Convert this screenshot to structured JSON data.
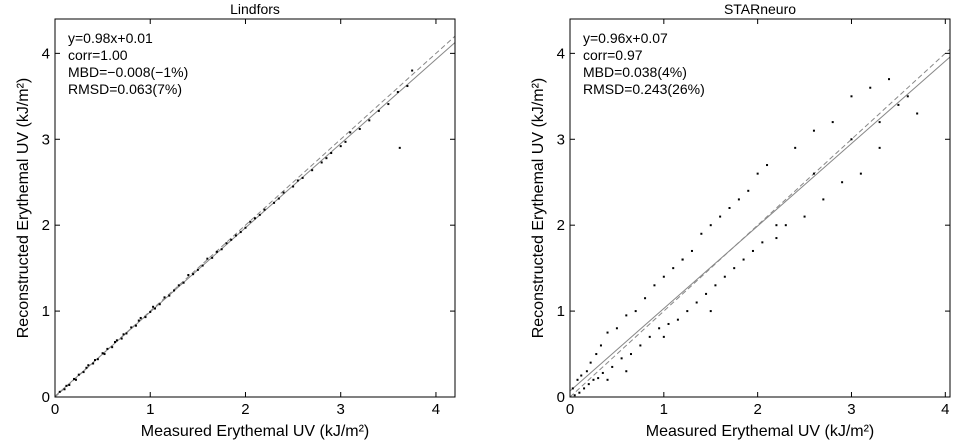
{
  "chart_data": [
    {
      "type": "scatter",
      "title": "Lindfors",
      "x_label": "Measured Erythemal UV (kJ/m²)",
      "y_label": "Reconstructed Erythemal UV (kJ/m²)",
      "annotations": [
        "y=0.98x+0.01",
        "corr=1.00",
        "MBD=−0.008(−1%)",
        "RMSD=0.063(7%)"
      ],
      "xlim": [
        0,
        4.2
      ],
      "ylim": [
        0,
        4.4
      ],
      "xticks": [
        0,
        1,
        2,
        3,
        4
      ],
      "yticks": [
        0,
        1,
        2,
        3,
        4
      ],
      "color": "#000000",
      "line_color": "#888888",
      "identity_line": true,
      "fit": {
        "slope": 0.98,
        "intercept": 0.01
      },
      "x": [
        0.05,
        0.1,
        0.12,
        0.15,
        0.2,
        0.22,
        0.25,
        0.3,
        0.33,
        0.35,
        0.4,
        0.42,
        0.45,
        0.5,
        0.52,
        0.55,
        0.6,
        0.63,
        0.65,
        0.7,
        0.72,
        0.75,
        0.8,
        0.85,
        0.88,
        0.9,
        0.95,
        1.0,
        1.03,
        1.05,
        1.1,
        1.15,
        1.2,
        1.25,
        1.3,
        1.35,
        1.4,
        1.45,
        1.5,
        1.55,
        1.6,
        1.65,
        1.7,
        1.75,
        1.8,
        1.85,
        1.9,
        1.95,
        2.0,
        2.05,
        2.1,
        2.15,
        2.2,
        2.3,
        2.35,
        2.4,
        2.5,
        2.55,
        2.6,
        2.7,
        2.8,
        2.85,
        2.9,
        3.0,
        3.05,
        3.1,
        3.2,
        3.3,
        3.4,
        3.5,
        3.6,
        3.62,
        3.7,
        3.75
      ],
      "values": [
        0.06,
        0.09,
        0.13,
        0.14,
        0.21,
        0.2,
        0.26,
        0.29,
        0.34,
        0.37,
        0.39,
        0.43,
        0.44,
        0.51,
        0.5,
        0.56,
        0.58,
        0.64,
        0.66,
        0.68,
        0.73,
        0.74,
        0.81,
        0.83,
        0.89,
        0.92,
        0.93,
        0.99,
        1.05,
        1.03,
        1.08,
        1.16,
        1.18,
        1.24,
        1.3,
        1.33,
        1.42,
        1.43,
        1.48,
        1.53,
        1.61,
        1.62,
        1.69,
        1.72,
        1.79,
        1.83,
        1.88,
        1.92,
        1.97,
        2.04,
        2.08,
        2.12,
        2.18,
        2.26,
        2.31,
        2.38,
        2.45,
        2.52,
        2.55,
        2.64,
        2.73,
        2.78,
        2.84,
        2.92,
        2.97,
        3.08,
        3.12,
        3.22,
        3.33,
        3.41,
        3.55,
        2.9,
        3.62,
        3.8
      ]
    },
    {
      "type": "scatter",
      "title": "STARneuro",
      "x_label": "Measured Erythemal UV (kJ/m²)",
      "y_label": "Reconstructed Erythemal UV (kJ/m²)",
      "annotations": [
        "y=0.96x+0.07",
        "corr=0.97",
        "MBD=0.038(4%)",
        "RMSD=0.243(26%)"
      ],
      "xlim": [
        0,
        4.05
      ],
      "ylim": [
        0,
        4.4
      ],
      "xticks": [
        0,
        1,
        2,
        3,
        4
      ],
      "yticks": [
        0,
        1,
        2,
        3,
        4
      ],
      "color": "#000000",
      "line_color": "#888888",
      "identity_line": true,
      "fit": {
        "slope": 0.96,
        "intercept": 0.07
      },
      "x": [
        0.03,
        0.05,
        0.08,
        0.1,
        0.12,
        0.15,
        0.18,
        0.2,
        0.22,
        0.25,
        0.28,
        0.3,
        0.33,
        0.35,
        0.4,
        0.45,
        0.5,
        0.55,
        0.6,
        0.65,
        0.7,
        0.75,
        0.8,
        0.85,
        0.9,
        0.95,
        1.0,
        1.05,
        1.1,
        1.15,
        1.2,
        1.25,
        1.3,
        1.35,
        1.4,
        1.45,
        1.5,
        1.55,
        1.6,
        1.65,
        1.7,
        1.75,
        1.8,
        1.85,
        1.9,
        1.95,
        2.0,
        2.05,
        2.1,
        2.2,
        2.3,
        2.4,
        2.5,
        2.6,
        2.7,
        2.8,
        2.9,
        3.0,
        3.1,
        3.2,
        3.3,
        3.4,
        3.5,
        0.4,
        0.6,
        1.0,
        1.2,
        1.5,
        2.2,
        2.6,
        3.0,
        3.3,
        3.6,
        3.7
      ],
      "values": [
        0.1,
        0.02,
        0.2,
        0.05,
        0.25,
        0.1,
        0.3,
        0.15,
        0.4,
        0.2,
        0.5,
        0.22,
        0.6,
        0.28,
        0.75,
        0.35,
        0.8,
        0.45,
        0.95,
        0.5,
        1.0,
        0.6,
        1.15,
        0.7,
        1.3,
        0.8,
        1.4,
        0.85,
        1.5,
        0.9,
        1.6,
        1.0,
        1.7,
        1.1,
        1.9,
        1.2,
        2.0,
        1.3,
        2.1,
        1.4,
        2.2,
        1.5,
        2.3,
        1.6,
        2.4,
        1.7,
        2.6,
        1.8,
        2.7,
        1.85,
        2.0,
        2.9,
        2.1,
        3.1,
        2.3,
        3.2,
        2.5,
        3.5,
        2.6,
        3.6,
        2.9,
        3.7,
        3.4,
        0.2,
        0.3,
        0.7,
        1.6,
        1.0,
        2.0,
        2.6,
        3.0,
        3.2,
        3.5,
        3.3
      ]
    }
  ]
}
